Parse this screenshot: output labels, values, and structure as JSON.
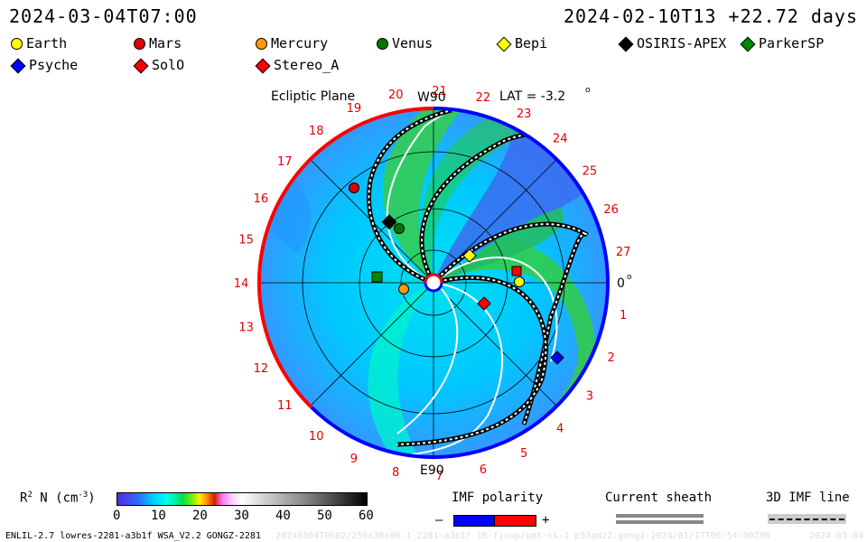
{
  "header": {
    "left_time": "2024-03-04T07:00",
    "right_time": "2024-02-10T13 +22.72 days"
  },
  "legend": [
    {
      "name": "Earth",
      "shape": "circle",
      "color": "#ffff00"
    },
    {
      "name": "Mars",
      "shape": "circle",
      "color": "#e00000"
    },
    {
      "name": "Mercury",
      "shape": "circle",
      "color": "#ff9900"
    },
    {
      "name": "Venus",
      "shape": "circle",
      "color": "#007700"
    },
    {
      "name": "Bepi",
      "shape": "diamond",
      "color": "#ffff00"
    },
    {
      "name": "OSIRIS-APEX",
      "shape": "diamond",
      "color": "#000000"
    },
    {
      "name": "ParkerSP",
      "shape": "diamond",
      "color": "#008800"
    },
    {
      "name": "Psyche",
      "shape": "diamond",
      "color": "#0000ff"
    },
    {
      "name": "SolO",
      "shape": "diamond",
      "color": "#ff0000"
    },
    {
      "name": "Stereo_A",
      "shape": "diamond",
      "color": "#ff0000"
    }
  ],
  "plot": {
    "title": "Ecliptic Plane",
    "top_label": "W90",
    "bottom_label": "E90",
    "lat_label": "LAT = -3.2",
    "lat_degree": "o",
    "zero_label": "0",
    "zero_degree": "o",
    "carrington_ticks": [
      "1",
      "2",
      "3",
      "4",
      "5",
      "6",
      "7",
      "8",
      "9",
      "10",
      "11",
      "12",
      "13",
      "14",
      "15",
      "16",
      "17",
      "18",
      "19",
      "20",
      "21",
      "22",
      "23",
      "24",
      "25",
      "26",
      "27"
    ]
  },
  "colorbar": {
    "label": "R",
    "label_sup": "2",
    "label_rest": " N (cm",
    "label_exp": "-3",
    "label_end": ")",
    "ticks": [
      "0",
      "10",
      "20",
      "30",
      "40",
      "50",
      "60"
    ]
  },
  "imf": {
    "title": "IMF polarity",
    "minus": "–",
    "plus": "+",
    "neg_color": "#0000ff",
    "pos_color": "#ff0000"
  },
  "sheath": {
    "title": "Current sheath"
  },
  "imf3d": {
    "title": "3D IMF line"
  },
  "footer": {
    "left": "ENLIL-2.7 lowres-2281-a3b1f WSA_V2.2 GONGZ-2281",
    "middle": "20240304T0602/256x30x90.1 2281-a3b1f 1B-fixup/umt-cs-1 p53qdz2.gongz-2024/01/17T06:54:00Z00",
    "right": "2024-03-04"
  }
}
